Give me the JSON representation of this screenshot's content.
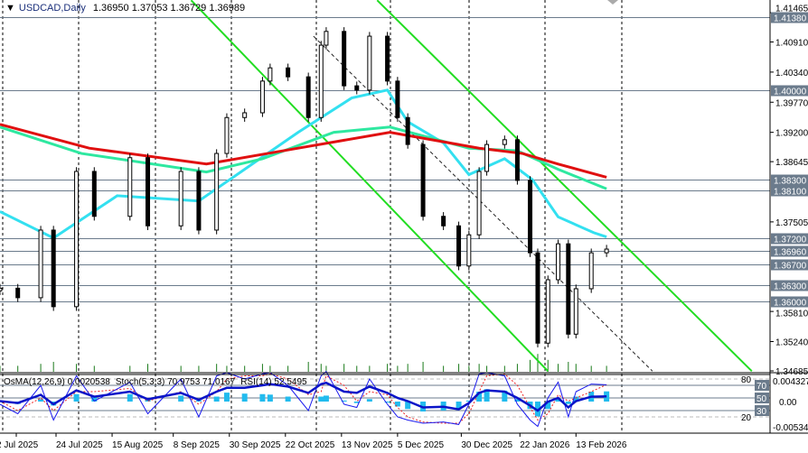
{
  "header": {
    "symbol": "USDCAD,Daily",
    "open": "1.36950",
    "high": "1.37053",
    "low": "1.36729",
    "close": "1.36989"
  },
  "indicators_header": {
    "osma": "OsMA(12,26,9) 0.0020538",
    "stoch": "Stoch(5,3,3) 70.9753 71.0167",
    "rsi": "RSI(14) 52.5495"
  },
  "colors": {
    "ma_fast": "#33e0f0",
    "ma_mid": "#2ee8a0",
    "ma_slow": "#e01010",
    "channel": "#22dd22",
    "level_line": "#6b7b8c",
    "volume": "#1a7a1a",
    "osma": "#22bbee",
    "stoch_main": "#1a1aee",
    "stoch_signal": "#ee2222",
    "rsi": "#0a14c8"
  },
  "chart_data": {
    "type": "candlestick",
    "symbol": "USDCAD",
    "timeframe": "Daily",
    "ylim": [
      1.3465,
      1.417
    ],
    "price_ticks": [
      "1.41465",
      "1.40910",
      "1.40340",
      "1.39770",
      "1.39200",
      "1.38645",
      "1.37505",
      "1.35810",
      "1.35240",
      "1.34685"
    ],
    "price_tick_values": [
      1.41465,
      1.4091,
      1.4034,
      1.3977,
      1.392,
      1.38645,
      1.37505,
      1.3581,
      1.3524,
      1.34685
    ],
    "levels": [
      {
        "label": "1.41380",
        "value": 1.4138
      },
      {
        "label": "1.40000",
        "value": 1.4
      },
      {
        "label": "1.38300",
        "value": 1.383
      },
      {
        "label": "1.38100",
        "value": 1.381
      },
      {
        "label": "1.37200",
        "value": 1.372
      },
      {
        "label": "1.36960",
        "value": 1.3696
      },
      {
        "label": "1.36700",
        "value": 1.367
      },
      {
        "label": "1.36300",
        "value": 1.363
      },
      {
        "label": "1.36000",
        "value": 1.36
      }
    ],
    "date_ticks": [
      {
        "label": "2 Jul 2025",
        "date": "2025-07-02"
      },
      {
        "label": "24 Jul 2025",
        "date": "2025-07-24"
      },
      {
        "label": "15 Aug 2025",
        "date": "2025-08-15"
      },
      {
        "label": "8 Sep 2025",
        "date": "2025-09-08"
      },
      {
        "label": "30 Sep 2025",
        "date": "2025-09-30"
      },
      {
        "label": "22 Oct 2025",
        "date": "2025-10-22"
      },
      {
        "label": "13 Nov 2025",
        "date": "2025-11-13"
      },
      {
        "label": "5 Dec 2025",
        "date": "2025-12-05"
      },
      {
        "label": "30 Dec 2025",
        "date": "2025-12-30"
      },
      {
        "label": "22 Jan 2026",
        "date": "2026-01-22"
      },
      {
        "label": "13 Feb 2026",
        "date": "2026-02-13"
      }
    ],
    "dates": [
      "2025-07-02",
      "2025-07-09",
      "2025-07-18",
      "2025-07-23",
      "2025-08-01",
      "2025-08-08",
      "2025-08-22",
      "2025-08-29",
      "2025-09-11",
      "2025-09-18",
      "2025-09-25",
      "2025-09-29",
      "2025-10-06",
      "2025-10-13",
      "2025-10-16",
      "2025-10-23",
      "2025-10-31",
      "2025-11-05",
      "2025-11-07",
      "2025-11-14",
      "2025-11-19",
      "2025-11-24",
      "2025-12-01",
      "2025-12-05",
      "2025-12-09",
      "2025-12-15",
      "2025-12-23",
      "2025-12-29",
      "2026-01-02",
      "2026-01-06",
      "2026-01-09",
      "2026-01-16",
      "2026-01-21",
      "2026-01-26",
      "2026-01-29",
      "2026-02-02",
      "2026-02-06",
      "2026-02-10",
      "2026-02-13",
      "2026-02-19",
      "2026-02-25"
    ],
    "close": [
      1.3625,
      1.3607,
      1.3735,
      1.359,
      1.3846,
      1.3761,
      1.3872,
      1.3743,
      1.3846,
      1.3735,
      1.388,
      1.3948,
      1.3957,
      1.4017,
      1.4042,
      1.4025,
      1.3948,
      1.4085,
      1.4111,
      1.4008,
      1.4,
      1.4102,
      1.4017,
      1.3948,
      1.3897,
      1.3761,
      1.3743,
      1.3667,
      1.3726,
      1.3846,
      1.3897,
      1.3906,
      1.3829,
      1.3692,
      1.3521,
      1.3641,
      1.3709,
      1.3538,
      1.3624,
      1.3692,
      1.3699
    ],
    "volume_relative": [
      3,
      3,
      4,
      5,
      4,
      3,
      3,
      4,
      3,
      3,
      4,
      3,
      3,
      4,
      3,
      3,
      5,
      4,
      3,
      4,
      3,
      3,
      4,
      3,
      4,
      5,
      3,
      4,
      3,
      4,
      3,
      3,
      4,
      6,
      9,
      6,
      4,
      5,
      4,
      3,
      3
    ],
    "moving_averages": [
      {
        "color_key": "ma_fast",
        "points": [
          [
            "2025-07-02",
            1.377
          ],
          [
            "2025-07-23",
            1.372
          ],
          [
            "2025-08-17",
            1.38
          ],
          [
            "2025-09-18",
            1.379
          ],
          [
            "2025-10-09",
            1.386
          ],
          [
            "2025-10-27",
            1.392
          ],
          [
            "2025-11-17",
            1.3985
          ],
          [
            "2025-12-01",
            1.4
          ],
          [
            "2025-12-09",
            1.394
          ],
          [
            "2025-12-23",
            1.39
          ],
          [
            "2026-01-02",
            1.384
          ],
          [
            "2026-01-16",
            1.387
          ],
          [
            "2026-01-27",
            1.383
          ],
          [
            "2026-02-06",
            1.376
          ],
          [
            "2026-02-20",
            1.373
          ],
          [
            "2026-02-25",
            1.3722
          ]
        ]
      },
      {
        "color_key": "ma_mid",
        "points": [
          [
            "2025-07-02",
            1.393
          ],
          [
            "2025-08-03",
            1.388
          ],
          [
            "2025-09-21",
            1.3845
          ],
          [
            "2025-10-13",
            1.387
          ],
          [
            "2025-11-10",
            1.392
          ],
          [
            "2025-12-02",
            1.393
          ],
          [
            "2026-01-02",
            1.389
          ],
          [
            "2026-01-21",
            1.3885
          ],
          [
            "2026-02-06",
            1.385
          ],
          [
            "2026-02-25",
            1.3813
          ]
        ]
      },
      {
        "color_key": "ma_slow",
        "points": [
          [
            "2025-07-02",
            1.3935
          ],
          [
            "2025-08-06",
            1.389
          ],
          [
            "2025-09-21",
            1.386
          ],
          [
            "2025-10-27",
            1.389
          ],
          [
            "2025-12-02",
            1.392
          ],
          [
            "2026-01-06",
            1.389
          ],
          [
            "2026-01-23",
            1.388
          ],
          [
            "2026-02-06",
            1.386
          ],
          [
            "2026-02-25",
            1.3835
          ]
        ]
      }
    ],
    "trendlines": [
      {
        "style": "solid",
        "from": [
          "2025-09-15",
          1.417
        ],
        "to": [
          "2026-02-02",
          1.3468
        ]
      },
      {
        "style": "solid",
        "from": [
          "2025-11-27",
          1.417
        ],
        "to": [
          "2026-04-23",
          1.3468
        ]
      },
      {
        "style": "dashed",
        "from": [
          "2025-11-02",
          1.4102
        ],
        "to": [
          "2026-03-15",
          1.3468
        ]
      }
    ],
    "osma_ticks": [
      "0.0043278",
      "0.00",
      "-0.005342"
    ],
    "osma_range": [
      -0.005342,
      0.0043278
    ],
    "osc_levels": [
      "80",
      "70",
      "50",
      "30",
      "20"
    ],
    "osma": [
      0,
      -0.0005,
      0.0005,
      -0.0008,
      0.0015,
      0.001,
      0.0015,
      0.0005,
      0.0012,
      0.0002,
      0.001,
      0.0018,
      0.0016,
      0.0015,
      0.0014,
      0.001,
      0,
      0.001,
      0.0012,
      0.0002,
      -0.0003,
      0.0005,
      -0.0002,
      -0.001,
      -0.0015,
      -0.002,
      -0.0018,
      -0.0015,
      0.0002,
      0.002,
      0.0025,
      0.0022,
      0.0005,
      -0.0015,
      -0.003,
      -0.0015,
      0.0005,
      -0.0005,
      0.001,
      0.002,
      0.0020538
    ],
    "stoch_main": [
      40,
      25,
      70,
      15,
      85,
      45,
      75,
      25,
      80,
      20,
      85,
      90,
      80,
      88,
      90,
      70,
      30,
      85,
      92,
      40,
      35,
      80,
      40,
      20,
      15,
      10,
      12,
      8,
      40,
      88,
      90,
      85,
      40,
      15,
      5,
      50,
      75,
      20,
      60,
      72,
      70.9753
    ],
    "stoch_signal": [
      45,
      30,
      50,
      30,
      60,
      60,
      65,
      45,
      60,
      40,
      60,
      80,
      85,
      85,
      88,
      80,
      55,
      60,
      85,
      70,
      45,
      60,
      55,
      35,
      20,
      12,
      10,
      10,
      25,
      60,
      85,
      88,
      70,
      35,
      15,
      25,
      55,
      45,
      50,
      60,
      71.0167
    ],
    "rsi": [
      45,
      42,
      55,
      40,
      62,
      52,
      60,
      48,
      58,
      47,
      60,
      66,
      66,
      70,
      72,
      68,
      58,
      72,
      74,
      60,
      58,
      68,
      58,
      50,
      45,
      35,
      36,
      32,
      42,
      58,
      62,
      60,
      50,
      38,
      30,
      44,
      50,
      35,
      45,
      52,
      52.5495
    ]
  }
}
